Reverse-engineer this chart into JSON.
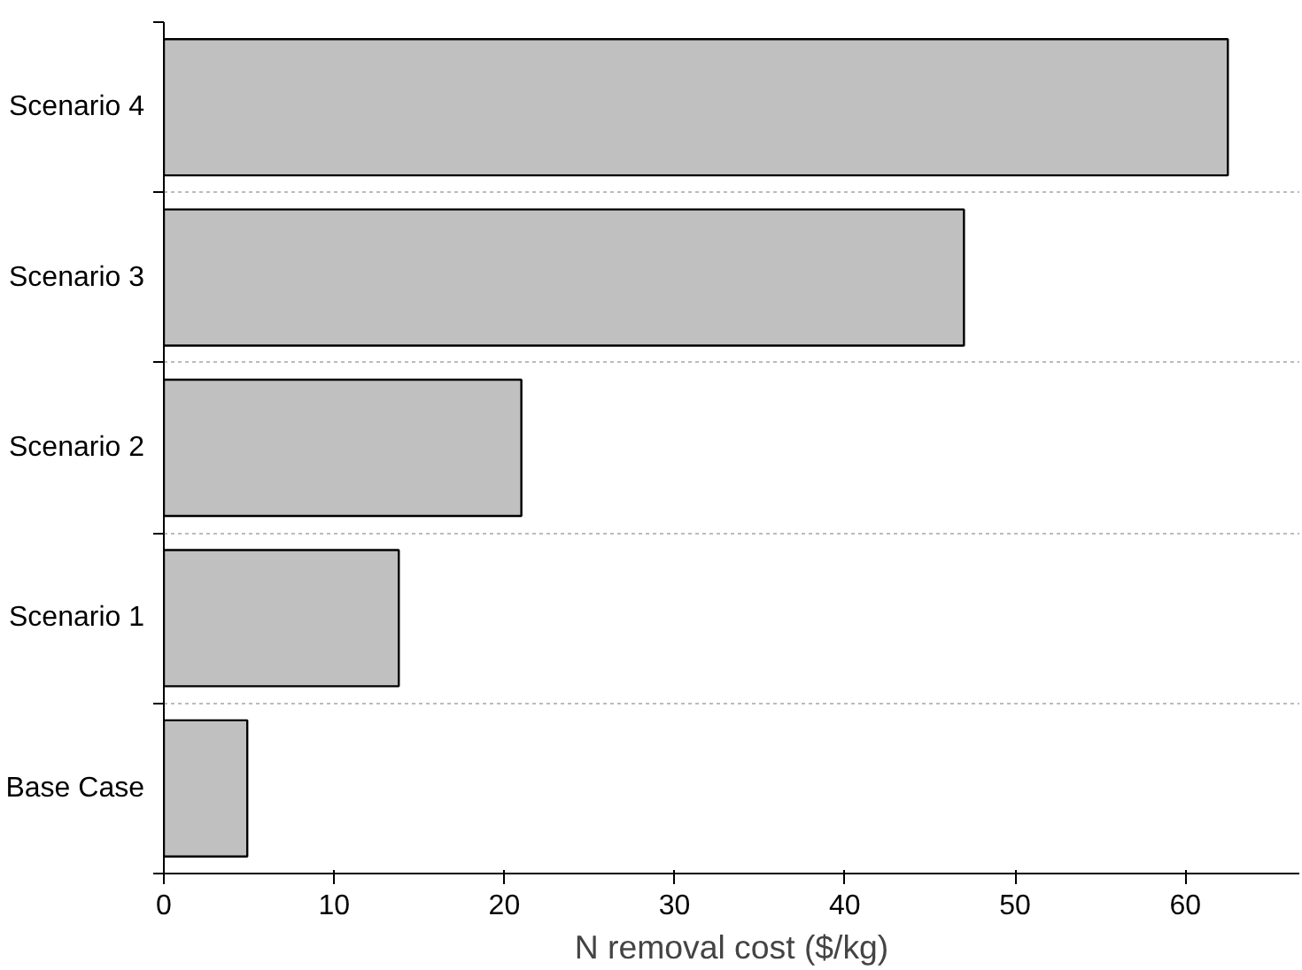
{
  "chart_data": {
    "type": "bar",
    "orientation": "horizontal",
    "categories": [
      "Scenario 4",
      "Scenario 3",
      "Scenario 2",
      "Scenario 1",
      "Base Case"
    ],
    "values": [
      62.5,
      47.0,
      21.0,
      13.8,
      4.9
    ],
    "color": "#c0c0c0",
    "xlabel": "N removal cost ($/kg)",
    "xlim": [
      0,
      66.7
    ],
    "xticks": [
      0,
      10,
      20,
      30,
      40,
      50,
      60
    ],
    "grid": "y"
  }
}
